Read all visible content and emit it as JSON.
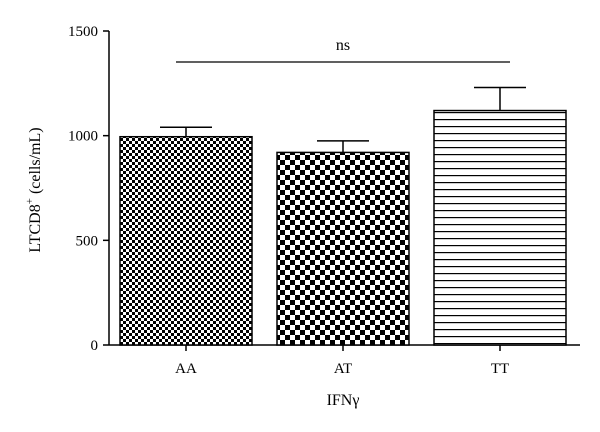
{
  "chart_data": {
    "type": "bar",
    "categories": [
      "AA",
      "AT",
      "TT"
    ],
    "values": [
      995,
      920,
      1120
    ],
    "errors": [
      45,
      55,
      110
    ],
    "patterns": [
      "fine-checker",
      "coarse-checker",
      "horizontal-stripes"
    ],
    "xlabel": "IFNγ",
    "ylabel_main": "LTCD8",
    "ylabel_sup": "+",
    "ylabel_unit": " (cells/mL)",
    "ylim": [
      0,
      1500
    ],
    "yticks": [
      0,
      500,
      1000,
      1500
    ],
    "annotation": "ns",
    "grid": false
  }
}
